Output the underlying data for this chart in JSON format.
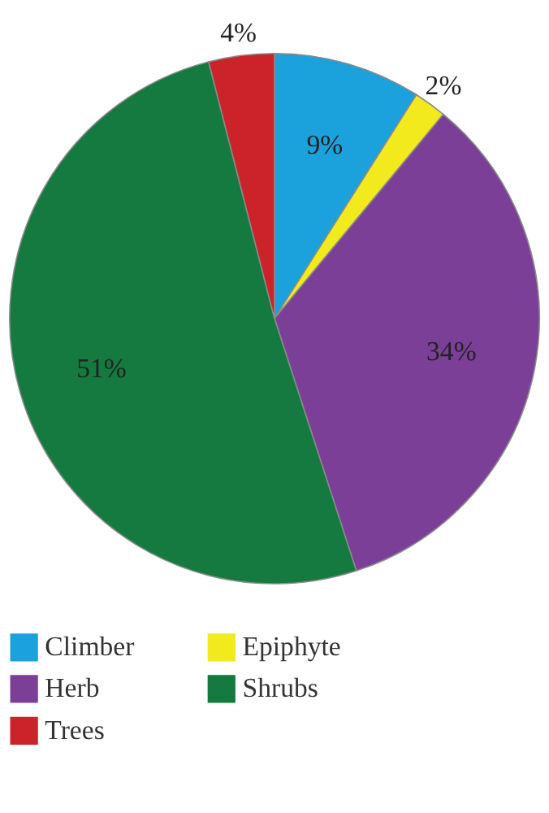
{
  "chart_data": {
    "type": "pie",
    "categories": [
      "Climber",
      "Epiphyte",
      "Herb",
      "Shrubs",
      "Trees"
    ],
    "values": [
      9,
      2,
      34,
      51,
      4
    ],
    "colors": [
      "#1ba1dc",
      "#f2ea1d",
      "#7b3f98",
      "#147a3f",
      "#cc2229"
    ],
    "value_labels": [
      "9%",
      "2%",
      "34%",
      "51%",
      "4%"
    ],
    "legend": "bottom"
  }
}
